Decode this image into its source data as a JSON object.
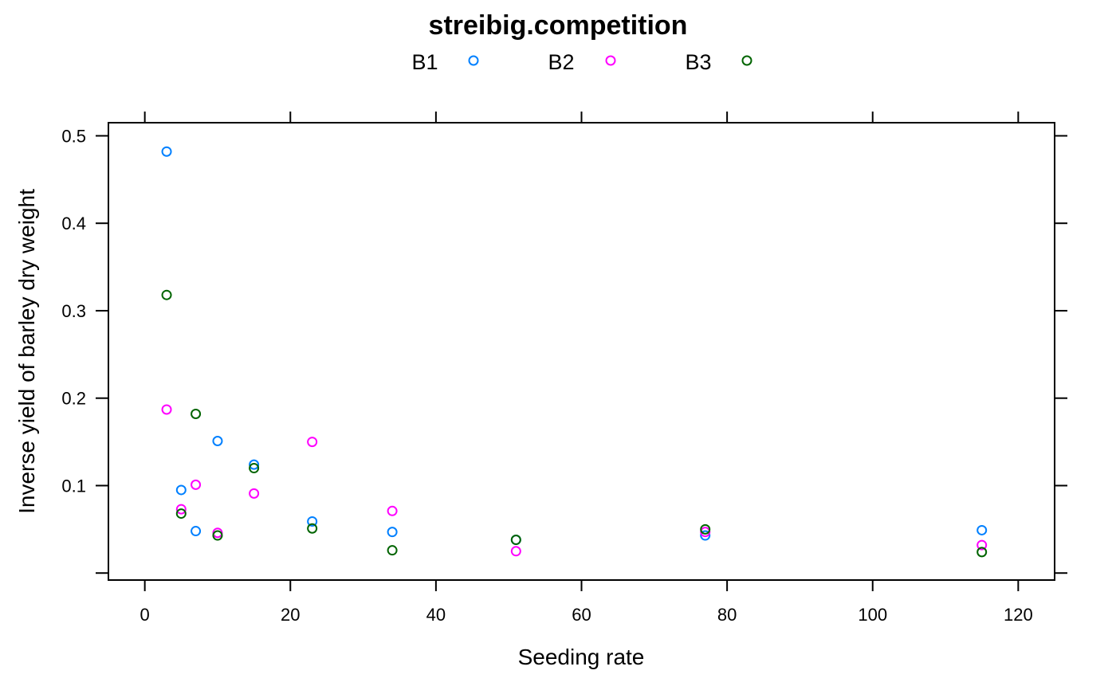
{
  "chart_data": {
    "type": "scatter",
    "title": "streibig.competition",
    "xlabel": "Seeding rate",
    "ylabel": "Inverse yield of barley dry weight",
    "xlim": [
      -5,
      125
    ],
    "ylim": [
      -0.008,
      0.515
    ],
    "xticks": [
      0,
      20,
      40,
      60,
      80,
      100,
      120
    ],
    "yticks": [
      0.1,
      0.2,
      0.3,
      0.4,
      0.5
    ],
    "xtick_labels": [
      "0",
      "20",
      "40",
      "60",
      "80",
      "100",
      "120"
    ],
    "ytick_labels": [
      "0.1",
      "0.2",
      "0.3",
      "0.4",
      "0.5"
    ],
    "grid": false,
    "legend_position": "top",
    "marker": "open-circle",
    "series": [
      {
        "name": "B1",
        "color": "#0080ff",
        "points": [
          {
            "x": 3,
            "y": 0.482
          },
          {
            "x": 5,
            "y": 0.095
          },
          {
            "x": 7,
            "y": 0.048
          },
          {
            "x": 10,
            "y": 0.151
          },
          {
            "x": 15,
            "y": 0.124
          },
          {
            "x": 23,
            "y": 0.059
          },
          {
            "x": 34,
            "y": 0.047
          },
          {
            "x": 51,
            "y": 0.038
          },
          {
            "x": 77,
            "y": 0.043
          },
          {
            "x": 115,
            "y": 0.049
          }
        ]
      },
      {
        "name": "B2",
        "color": "#ff00ff",
        "points": [
          {
            "x": 3,
            "y": 0.187
          },
          {
            "x": 5,
            "y": 0.073
          },
          {
            "x": 7,
            "y": 0.101
          },
          {
            "x": 10,
            "y": 0.046
          },
          {
            "x": 15,
            "y": 0.091
          },
          {
            "x": 23,
            "y": 0.15
          },
          {
            "x": 34,
            "y": 0.071
          },
          {
            "x": 51,
            "y": 0.025
          },
          {
            "x": 77,
            "y": 0.047
          },
          {
            "x": 115,
            "y": 0.032
          }
        ]
      },
      {
        "name": "B3",
        "color": "#006400",
        "points": [
          {
            "x": 3,
            "y": 0.318
          },
          {
            "x": 5,
            "y": 0.068
          },
          {
            "x": 7,
            "y": 0.182
          },
          {
            "x": 10,
            "y": 0.043
          },
          {
            "x": 15,
            "y": 0.12
          },
          {
            "x": 23,
            "y": 0.051
          },
          {
            "x": 34,
            "y": 0.026
          },
          {
            "x": 51,
            "y": 0.038
          },
          {
            "x": 77,
            "y": 0.05
          },
          {
            "x": 115,
            "y": 0.024
          }
        ]
      }
    ]
  }
}
